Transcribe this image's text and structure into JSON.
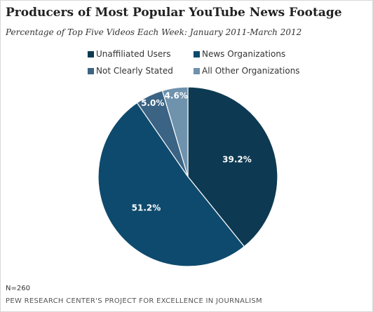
{
  "chart_data": {
    "type": "pie",
    "title": "Producers of Most Popular YouTube News Footage",
    "subtitle": "Percentage of Top Five Videos Each Week: January 2011-March 2012",
    "slices": [
      {
        "label": "Unaffiliated Users",
        "value": 39.2,
        "display": "39.2%",
        "color": "#0d3a52"
      },
      {
        "label": "News Organizations",
        "value": 51.2,
        "display": "51.2%",
        "color": "#0e4a6d"
      },
      {
        "label": "Not Clearly Stated",
        "value": 5.0,
        "display": "5.0%",
        "color": "#3a6384"
      },
      {
        "label": "All Other Organizations",
        "value": 4.6,
        "display": "4.6%",
        "color": "#6f92ad"
      }
    ],
    "legend_position": "top"
  },
  "footer": {
    "n_note": "N=260",
    "source": "PEW RESEARCH CENTER'S PROJECT FOR EXCELLENCE IN JOURNALISM"
  }
}
